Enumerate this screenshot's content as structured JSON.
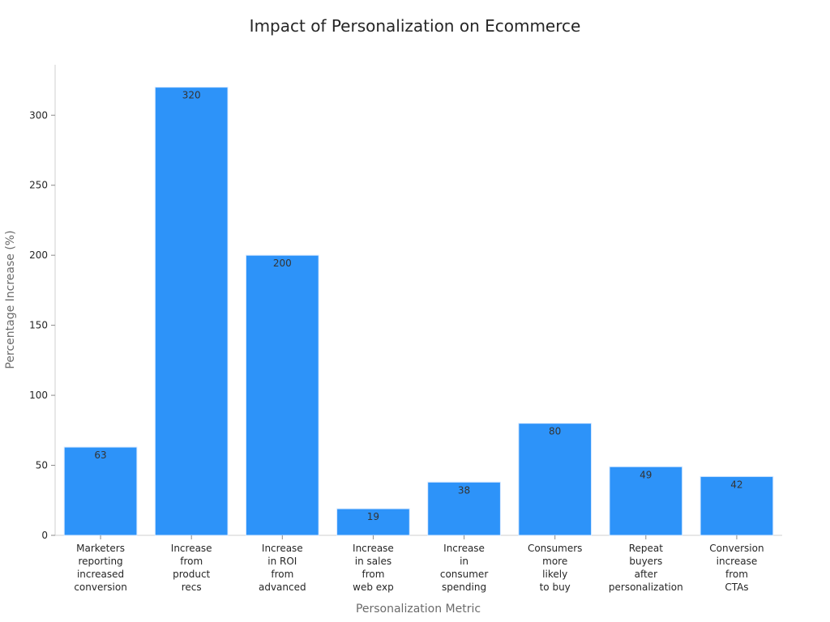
{
  "chart_data": {
    "type": "bar",
    "title": "Impact of Personalization on Ecommerce",
    "xlabel": "Personalization Metric",
    "ylabel": "Percentage Increase (%)",
    "categories": [
      "Marketers\nreporting\nincreased\nconversion",
      "Increase\nfrom\nproduct\nrecs",
      "Increase\nin ROI\nfrom\nadvanced",
      "Increase\nin sales\nfrom\nweb exp",
      "Increase\nin\nconsumer\nspending",
      "Consumers\nmore\nlikely\nto buy",
      "Repeat\nbuyers\nafter\npersonalization",
      "Conversion\nincrease\nfrom\nCTAs"
    ],
    "values": [
      63,
      320,
      200,
      19,
      38,
      80,
      49,
      42
    ],
    "data_labels": [
      "63",
      "320",
      "200",
      "19",
      "38",
      "80",
      "49",
      "42"
    ],
    "y_ticks": [
      0,
      50,
      100,
      150,
      200,
      250,
      300
    ],
    "ylim": [
      0,
      336
    ],
    "grid": false,
    "bar_color": "#2d93f9",
    "bar_edge_color": "#d7e9ff",
    "axis_color": "#cfcfcf",
    "tick_color": "#8a8a8a",
    "text_color": "#262626",
    "muted_text_color": "#6b6b6b"
  }
}
